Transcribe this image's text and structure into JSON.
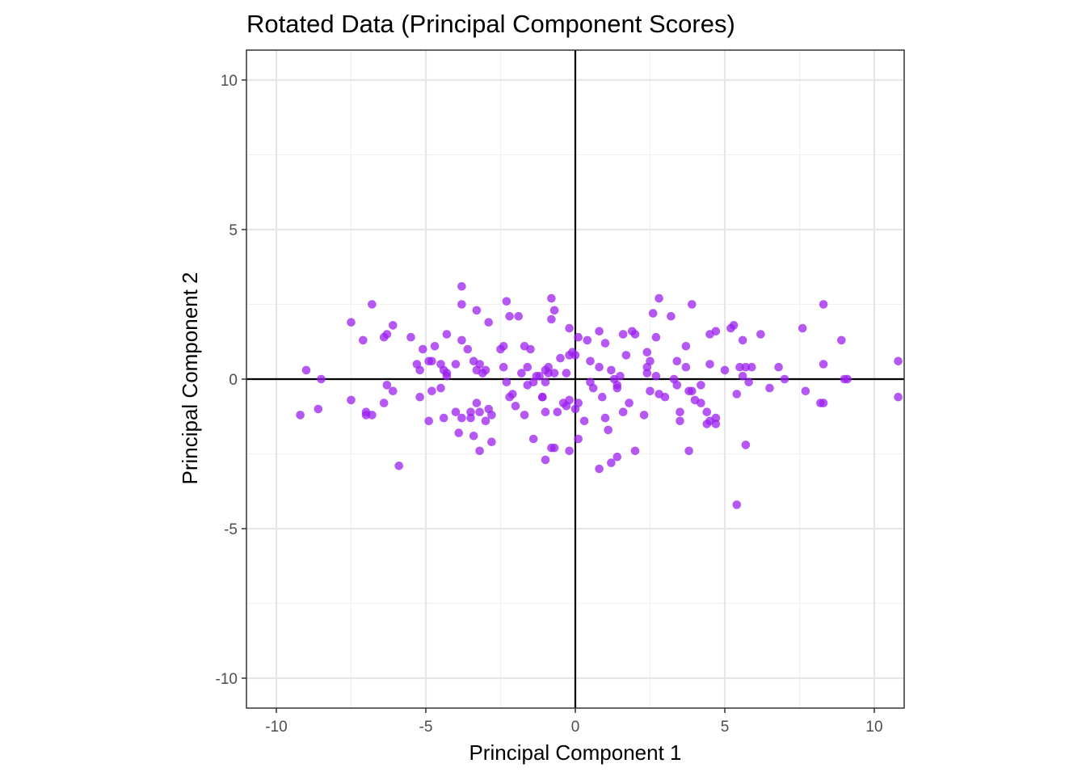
{
  "chart_data": {
    "type": "scatter",
    "title": "Rotated Data (Principal Component Scores)",
    "xlabel": "Principal Component 1",
    "ylabel": "Principal Component 2",
    "xlim": [
      -11,
      11
    ],
    "ylim": [
      -11,
      11
    ],
    "xticks": [
      -10,
      -5,
      0,
      5,
      10
    ],
    "yticks": [
      -10,
      -5,
      0,
      5,
      10
    ],
    "xtick_labels": [
      "-10",
      "-5",
      "0",
      "5",
      "10"
    ],
    "ytick_labels": [
      "-10",
      "-5",
      "0",
      "5",
      "10"
    ],
    "grid": true,
    "reference_lines": {
      "x": 0,
      "y": 0
    },
    "point_color": "#9b1fef",
    "points": [
      [
        -9.2,
        -1.2
      ],
      [
        -9.0,
        0.3
      ],
      [
        -8.6,
        -1.0
      ],
      [
        -8.5,
        0.0
      ],
      [
        -7.5,
        -0.7
      ],
      [
        -7.5,
        1.9
      ],
      [
        -7.1,
        1.3
      ],
      [
        -7.0,
        -1.2
      ],
      [
        -7.0,
        -1.1
      ],
      [
        -6.8,
        2.5
      ],
      [
        -6.8,
        -1.2
      ],
      [
        -6.4,
        1.4
      ],
      [
        -6.4,
        -0.8
      ],
      [
        -6.3,
        1.5
      ],
      [
        -6.3,
        -0.2
      ],
      [
        -6.1,
        -0.4
      ],
      [
        -6.1,
        1.8
      ],
      [
        -5.9,
        -2.9
      ],
      [
        -5.5,
        1.4
      ],
      [
        -5.3,
        0.5
      ],
      [
        -5.2,
        -0.6
      ],
      [
        -5.2,
        0.3
      ],
      [
        -5.1,
        1.0
      ],
      [
        -4.9,
        -1.4
      ],
      [
        -4.9,
        0.6
      ],
      [
        -4.8,
        0.6
      ],
      [
        -4.8,
        -0.4
      ],
      [
        -4.7,
        1.1
      ],
      [
        -4.5,
        0.5
      ],
      [
        -4.5,
        -0.3
      ],
      [
        -4.4,
        -1.3
      ],
      [
        -4.4,
        0.3
      ],
      [
        -4.3,
        0.1
      ],
      [
        -4.3,
        1.5
      ],
      [
        -4.3,
        0.2
      ],
      [
        -4.0,
        0.5
      ],
      [
        -4.0,
        -1.1
      ],
      [
        -3.9,
        -1.8
      ],
      [
        -3.8,
        1.3
      ],
      [
        -3.8,
        2.5
      ],
      [
        -3.8,
        3.1
      ],
      [
        -3.8,
        -1.3
      ],
      [
        -3.6,
        1.0
      ],
      [
        -3.5,
        -1.3
      ],
      [
        -3.5,
        -1.1
      ],
      [
        -3.4,
        0.6
      ],
      [
        -3.4,
        -1.9
      ],
      [
        -3.3,
        0.3
      ],
      [
        -3.3,
        -0.8
      ],
      [
        -3.3,
        2.3
      ],
      [
        -3.2,
        0.5
      ],
      [
        -3.2,
        -2.4
      ],
      [
        -3.2,
        -1.1
      ],
      [
        -3.1,
        0.2
      ],
      [
        -3.0,
        0.3
      ],
      [
        -3.0,
        -1.4
      ],
      [
        -2.9,
        1.9
      ],
      [
        -2.9,
        -1.0
      ],
      [
        -2.8,
        -1.2
      ],
      [
        -2.8,
        -2.1
      ],
      [
        -2.5,
        1.0
      ],
      [
        -2.4,
        1.1
      ],
      [
        -2.4,
        0.4
      ],
      [
        -2.3,
        -0.1
      ],
      [
        -2.3,
        2.6
      ],
      [
        -2.2,
        2.1
      ],
      [
        -2.2,
        -0.6
      ],
      [
        -2.1,
        -0.5
      ],
      [
        -2.0,
        -0.9
      ],
      [
        -1.9,
        2.1
      ],
      [
        -1.8,
        0.2
      ],
      [
        -1.7,
        1.1
      ],
      [
        -1.7,
        -1.2
      ],
      [
        -1.6,
        -0.2
      ],
      [
        -1.6,
        0.4
      ],
      [
        -1.5,
        1.0
      ],
      [
        -1.4,
        -0.1
      ],
      [
        -1.4,
        -2.0
      ],
      [
        -1.3,
        0.1
      ],
      [
        -1.2,
        0.1
      ],
      [
        -1.1,
        -0.6
      ],
      [
        -1.1,
        -0.6
      ],
      [
        -1.0,
        0.3
      ],
      [
        -1.0,
        -0.1
      ],
      [
        -1.0,
        -1.1
      ],
      [
        -1.0,
        -2.7
      ],
      [
        -0.9,
        0.4
      ],
      [
        -0.9,
        0.2
      ],
      [
        -0.8,
        2.0
      ],
      [
        -0.8,
        2.7
      ],
      [
        -0.8,
        -2.3
      ],
      [
        -0.7,
        0.2
      ],
      [
        -0.7,
        2.3
      ],
      [
        -0.7,
        -2.3
      ],
      [
        -0.6,
        -1.1
      ],
      [
        -0.5,
        0.7
      ],
      [
        -0.4,
        -0.8
      ],
      [
        -0.3,
        0.2
      ],
      [
        -0.3,
        -0.9
      ],
      [
        -0.2,
        1.7
      ],
      [
        -0.2,
        0.8
      ],
      [
        -0.2,
        -0.7
      ],
      [
        -0.2,
        -2.4
      ],
      [
        -0.1,
        0.9
      ],
      [
        0.0,
        -1.0
      ],
      [
        0.0,
        0.8
      ],
      [
        0.1,
        1.4
      ],
      [
        0.1,
        -2.0
      ],
      [
        0.1,
        -0.8
      ],
      [
        0.3,
        -1.4
      ],
      [
        0.4,
        1.3
      ],
      [
        0.5,
        0.6
      ],
      [
        0.5,
        -0.1
      ],
      [
        0.6,
        -0.3
      ],
      [
        0.8,
        -3.0
      ],
      [
        0.8,
        1.6
      ],
      [
        0.8,
        0.4
      ],
      [
        0.9,
        -0.6
      ],
      [
        1.0,
        1.2
      ],
      [
        1.0,
        -1.3
      ],
      [
        1.1,
        -1.7
      ],
      [
        1.2,
        0.3
      ],
      [
        1.2,
        -2.8
      ],
      [
        1.3,
        0.0
      ],
      [
        1.4,
        -0.2
      ],
      [
        1.4,
        -0.3
      ],
      [
        1.4,
        -2.6
      ],
      [
        1.5,
        0.1
      ],
      [
        1.6,
        1.5
      ],
      [
        1.6,
        -1.1
      ],
      [
        1.7,
        0.8
      ],
      [
        1.8,
        -0.8
      ],
      [
        1.9,
        1.6
      ],
      [
        2.0,
        1.5
      ],
      [
        2.0,
        -2.4
      ],
      [
        2.3,
        -1.2
      ],
      [
        2.4,
        0.2
      ],
      [
        2.4,
        0.9
      ],
      [
        2.4,
        0.4
      ],
      [
        2.5,
        -0.4
      ],
      [
        2.5,
        0.6
      ],
      [
        2.6,
        2.2
      ],
      [
        2.7,
        0.1
      ],
      [
        2.7,
        1.4
      ],
      [
        2.8,
        -0.5
      ],
      [
        2.8,
        2.7
      ],
      [
        3.0,
        -0.6
      ],
      [
        3.2,
        2.1
      ],
      [
        3.3,
        0.0
      ],
      [
        3.4,
        -0.2
      ],
      [
        3.4,
        0.6
      ],
      [
        3.5,
        -1.1
      ],
      [
        3.5,
        -1.4
      ],
      [
        3.7,
        1.1
      ],
      [
        3.7,
        0.4
      ],
      [
        3.8,
        -0.4
      ],
      [
        3.8,
        -2.4
      ],
      [
        3.9,
        -0.4
      ],
      [
        3.9,
        2.5
      ],
      [
        4.0,
        -0.7
      ],
      [
        4.2,
        -0.8
      ],
      [
        4.2,
        -0.2
      ],
      [
        4.4,
        -1.5
      ],
      [
        4.4,
        -1.1
      ],
      [
        4.5,
        0.5
      ],
      [
        4.5,
        1.5
      ],
      [
        4.5,
        -1.4
      ],
      [
        4.7,
        -1.3
      ],
      [
        4.7,
        -1.5
      ],
      [
        4.7,
        1.6
      ],
      [
        5.0,
        0.3
      ],
      [
        5.2,
        1.7
      ],
      [
        5.3,
        1.8
      ],
      [
        5.4,
        -0.5
      ],
      [
        5.4,
        -4.2
      ],
      [
        5.5,
        0.4
      ],
      [
        5.6,
        1.3
      ],
      [
        5.6,
        0.1
      ],
      [
        5.7,
        0.4
      ],
      [
        5.7,
        -2.2
      ],
      [
        5.8,
        -0.1
      ],
      [
        5.9,
        0.4
      ],
      [
        6.2,
        1.5
      ],
      [
        6.5,
        -0.3
      ],
      [
        6.8,
        0.4
      ],
      [
        7.0,
        0.0
      ],
      [
        7.6,
        1.7
      ],
      [
        7.7,
        -0.4
      ],
      [
        8.2,
        -0.8
      ],
      [
        8.3,
        0.5
      ],
      [
        8.3,
        -0.8
      ],
      [
        8.3,
        2.5
      ],
      [
        8.9,
        1.3
      ],
      [
        9.0,
        0.0
      ],
      [
        9.1,
        0.0
      ],
      [
        10.8,
        0.6
      ],
      [
        10.8,
        -0.6
      ]
    ]
  }
}
